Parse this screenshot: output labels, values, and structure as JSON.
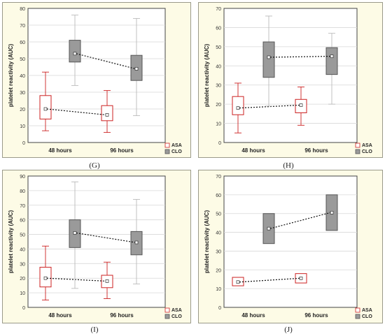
{
  "chart_data": [
    {
      "panel": "(G)",
      "type": "box",
      "ylabel": "platelet reactivity (AUC)",
      "ylim": [
        0,
        80
      ],
      "yticks": [
        0,
        10,
        20,
        30,
        40,
        50,
        60,
        70,
        80
      ],
      "categories": [
        "48 hours",
        "96 hours"
      ],
      "series": [
        {
          "name": "ASA",
          "boxes": [
            {
              "min": 7,
              "q1": 14,
              "median": 20,
              "q3": 28,
              "max": 42
            },
            {
              "min": 6,
              "q1": 13,
              "median": 16.5,
              "q3": 22,
              "max": 31
            }
          ]
        },
        {
          "name": "CLO",
          "boxes": [
            {
              "min": 34,
              "q1": 48,
              "median": 53,
              "q3": 61,
              "max": 76
            },
            {
              "min": 16,
              "q1": 37,
              "median": 44,
              "q3": 52,
              "max": 74
            }
          ]
        }
      ],
      "legend": [
        "ASA",
        "CLO"
      ]
    },
    {
      "panel": "(H)",
      "type": "box",
      "ylabel": "platelet reactivity (AUC)",
      "ylim": [
        0,
        70
      ],
      "yticks": [
        0,
        10,
        20,
        30,
        40,
        50,
        60,
        70
      ],
      "categories": [
        "48 hours",
        "96 hours"
      ],
      "series": [
        {
          "name": "ASA",
          "boxes": [
            {
              "min": 5,
              "q1": 14.5,
              "median": 18,
              "q3": 24,
              "max": 31
            },
            {
              "min": 9,
              "q1": 15.5,
              "median": 19.5,
              "q3": 22.5,
              "max": 29
            }
          ]
        },
        {
          "name": "CLO",
          "boxes": [
            {
              "min": 19,
              "q1": 34,
              "median": 44.5,
              "q3": 52.5,
              "max": 66
            },
            {
              "min": 20,
              "q1": 35.5,
              "median": 45,
              "q3": 49.5,
              "max": 57
            }
          ]
        }
      ],
      "legend": [
        "ASA",
        "CLO"
      ]
    },
    {
      "panel": "(I)",
      "type": "box",
      "ylabel": "platelet reactivity (AUC)",
      "ylim": [
        0,
        90
      ],
      "yticks": [
        0,
        10,
        20,
        30,
        40,
        50,
        60,
        70,
        80,
        90
      ],
      "categories": [
        "48 hours",
        "96 hours"
      ],
      "series": [
        {
          "name": "ASA",
          "boxes": [
            {
              "min": 5,
              "q1": 14,
              "median": 20,
              "q3": 27.5,
              "max": 42
            },
            {
              "min": 6,
              "q1": 13.5,
              "median": 18,
              "q3": 22,
              "max": 31
            }
          ]
        },
        {
          "name": "CLO",
          "boxes": [
            {
              "min": 13,
              "q1": 41,
              "median": 51,
              "q3": 60,
              "max": 86
            },
            {
              "min": 16,
              "q1": 36,
              "median": 44.5,
              "q3": 52,
              "max": 74
            }
          ]
        }
      ],
      "legend": [
        "ASA",
        "CLO"
      ]
    },
    {
      "panel": "(J)",
      "type": "box",
      "ylabel": "platelet reactivity (AUC)",
      "ylim": [
        0,
        70
      ],
      "yticks": [
        0,
        10,
        20,
        30,
        40,
        50,
        60,
        70
      ],
      "categories": [
        "48 hours",
        "96 hours"
      ],
      "series": [
        {
          "name": "ASA",
          "boxes": [
            {
              "q1": 11.5,
              "median": 13.5,
              "q3": 16
            },
            {
              "q1": 13,
              "median": 15.5,
              "q3": 18
            }
          ]
        },
        {
          "name": "CLO",
          "boxes": [
            {
              "q1": 34,
              "median": 42,
              "q3": 50
            },
            {
              "q1": 41,
              "median": 50.5,
              "q3": 60
            }
          ]
        }
      ],
      "legend": [
        "ASA",
        "CLO"
      ]
    }
  ],
  "colors": {
    "asa": "#cc2222",
    "clo_fill": "#9a9a9a",
    "clo_stroke": "#555555",
    "whisker": "#bbbbbb",
    "grid": "#d8d8d8"
  }
}
